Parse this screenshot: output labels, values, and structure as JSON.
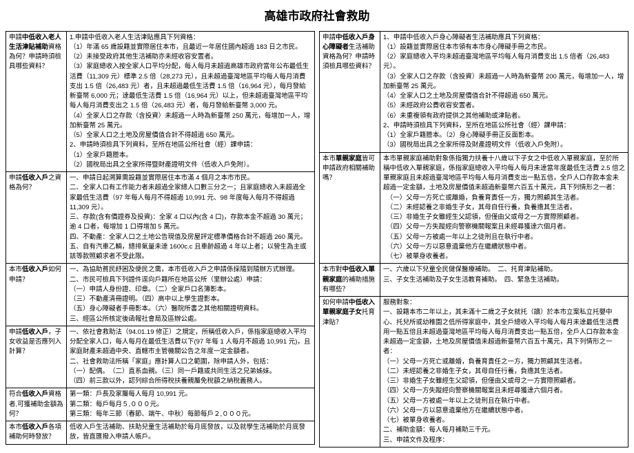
{
  "title": "高雄市政府社會救助",
  "left": [
    {
      "q": [
        "申請",
        "中低收入老人生活津貼補助",
        "資格為何？",
        "",
        "申請時須檢具哪些資料？"
      ],
      "qbold": [
        false,
        true,
        false,
        false,
        false
      ],
      "a": [
        "1.申請中低收入老人生活津貼應具下列資格：",
        "（1）年滿 65 歲設籍並實際居住本市，且最近一年居住國內超過 183 日之市民。",
        "（2）未接受政府其他生活補助亦未經收容安置者。",
        "（3）家庭總收入按全家人口平均分配，每人每月未超過高雄市政府當年公布最低生活費（11,309 元）標準 2.5 倍（28,273 元），且未超過臺灣地區平均每人每月消費支出 1.5 倍（26,483 元）者，且未超過最低生活費 1.5 倍（16,964 元），每月發給新臺幣 6,000 元；達最低生活費 1.5 倍（16,964 元）以上，但未超過臺灣地區平均每人每月消費支出之 1.5 倍（26,483 元）者，每月發給新臺幣 3,000 元。",
        "（4）全家人口之存款（含投資）未超過一人時為新臺幣 250 萬元，每增加一人，增加新臺幣 25 萬元。",
        "（5）全家人口之土地及房屋價值合計不得超過 650 萬元。",
        "2、申請時須檢具下列資料，至所在地區公所社會（經）課申請：",
        "（1）全家戶籍謄本。",
        "（2）國稅局出具之全家所得暨財產證明文件（低收入戶免附）。"
      ]
    },
    {
      "q": [
        "申請",
        "低收入戶",
        "之資格為何？"
      ],
      "qbold": [
        false,
        true,
        false
      ],
      "a": [
        "一、申請日起溯算需設籍並實際居住本市滿 4 個月之本市市民。",
        "二、全家人口有工作能力者未超過全家總人口數三分之一；且家庭總收入未超過全家最低生活費（97 年每人每月不得超過 10,991 元、98 年度每人每月不得超過 11,309 元）。",
        "三、存款(含有價證券及投資)：全家 4 口以內(含 4 口)，存款本金不超過 30 萬元；逾 4 口者，每增加 1 口得增加 5 萬元。",
        "四、不動產：全家人口之土地公告現值及房屋評定標準價格合計不超過 260 萬元。",
        "五、自有汽車乙輛，總排氣量未達 1600c.c 且車齡超過 4 年以上者；以營生為主或該等款照顧求者不受此限。"
      ]
    },
    {
      "q": [
        "本市",
        "低收入戶",
        "如何申請？"
      ],
      "qbold": [
        false,
        true,
        false
      ],
      "a": [
        "一、為協助貧民紓困及便民之需，本市低收入戶之申請係採隨到隨辦方式辦理。",
        "二、市民可檢具下列證件逕向戶籍所在地區公所（里辦公處）申請：",
        "（一）申請人身份證、印章。（二）全家戶口名簿影本。",
        "（三）不動產清冊證明。（四）高中以上學生證影本。",
        "（五）身心障礙者手冊影本。（六）醫院所書之其他相關證明資料。",
        "三、經區公所核定後函報社會局及區辦公處。"
      ]
    },
    {
      "q": [
        "申請",
        "低收入戶",
        "，子女收益是否應列入計算？"
      ],
      "qbold": [
        false,
        true,
        false
      ],
      "a": [
        "一、依社會救助法（94.01.19 修正）之規定，所稱低收入戶，係指家庭總收入平均分配全家人口，每人每月在最低生活費以下(97 年每 1 人每月不超過 10,991 元)，且家庭財產未超過中央、直轄市主管機關公告之年度一定金額者。",
        "二、社會救助法所稱「家庭」應計算人口之範圍，除申請人外，包括：",
        "（一）配偶。　（二）直系血親。（三）同一戶籍或共同生活之兄弟姊妹。",
        "（四）前三款以外，認列綜合所得稅扶養親屬免稅額之納稅義務人。"
      ]
    },
    {
      "q": [
        "符合",
        "低收入戶",
        "資格者,可獲補助金額為何？"
      ],
      "qbold": [
        false,
        true,
        false
      ],
      "a": [
        "第一類：戶長及家屬每人每月 10,991 元。",
        "第二類：每戶每月５,０００元。",
        "第三類：每年三節（春節、端午、中秋）每節每戶２,０００元。"
      ]
    },
    {
      "q": [
        "本市",
        "低收入戶",
        "各項補助何時發放？"
      ],
      "qbold": [
        false,
        true,
        false
      ],
      "a": [
        "低收入戶生活補助、扶助兒童生活補助於每月底發放，以及就學生活補助於月底發放，皆直匯撥入申請人帳戶。"
      ]
    }
  ],
  "right": [
    {
      "q": [
        "申請",
        "中低收入戶身心障礙者",
        "生活補助資格為何？申請時須檢具哪些資料？"
      ],
      "qbold": [
        false,
        true,
        false
      ],
      "a": [
        "1、申請中低收入戶身心障礙者生活補助應具下列資格：",
        "（1）設籍並實際居住本市領有本市身心障礙手冊之市民。",
        "（2）家庭總收入平均未超過臺灣地區平均每人每月消費支出 1.5 倍者（26,483 元）。",
        "（3）全家人口之存款（含投資）未超過一人時為新臺幣 200 萬元，每增加一人，增加新臺幣 25 萬元。",
        "（4）全家人口之土地及房屋價值合計不得超過 650 萬元。",
        "（5）未經政府公費收容安置者。",
        "（6）未重複領有政府提供之其他補助或津貼者。",
        "2、申請時須檢具下列資料，至所在地區公所社會（經）課申請：",
        "（1）全家戶籍謄本。（2）身心障礙手冊正反面影本。",
        "（3）國稅局出具之全家所得及財產證明文件（低收入戶免附）。"
      ]
    },
    {
      "q": [
        "本市",
        "單親家庭",
        "皆可申請政府相關補助嗎？"
      ],
      "qbold": [
        false,
        true,
        false
      ],
      "a": [
        "本市單親家庭補助對象係指獨力扶養十八歲以下子女之中低收入單親家庭，至於所稱中低收入單親家庭，係指家庭總收入平均每人每月未達當年度最低生活費 2.5 倍之單親家庭且未超過臺灣地區平均每人每月消費支出一點五倍，全戶人口存款本金未超過一定金額，土地及房屋價值未超過新臺幣六百五十萬元，具下列情形之一者：",
        "　（一）父母一方死亡或離婚，負養育責任一方，獨力照顧其生活者。",
        "　（二）未經認養之非婚生子女，其母自任行養，負養擔其生活者。",
        "　（三）非婚生子女雖經生父認領，但僅由父或母之一方實際照顧者。",
        "　（四）父母一方失蹤經向警察機關報案且未經尋獲達六個月者。",
        "　（五）父母一方被處一年以上之徒刑且在執行中者。",
        "　（六）父母一方以惡意遺棄他方在繼續狀態中者。",
        "　（七）被單身收養者。"
      ]
    },
    {
      "q": [
        "本市對",
        "中低收入單親家庭",
        "的補助措施有哪些？"
      ],
      "qbold": [
        false,
        true,
        false
      ],
      "a": [
        "一、六歲以下兒童全民健保醫療補助。　二、托育津貼補助。",
        "三、子女生活補助及子女生活教育補助。　四、緊急生活補助。"
      ]
    },
    {
      "q": [
        "如何申請",
        "中低收入單親家庭子女",
        "托育津貼？"
      ],
      "qbold": [
        false,
        true,
        false
      ],
      "a": [
        "服務對象：",
        "一、設籍本市二年以上，其未滿十二歲之子女就托（讀）於本市立案私立托嬰中心、托兒所或幼稚園之低所得家庭中，其全戶總收入平均每人每月未達最低生活費用一點五倍且未超過臺灣地區平均每人每月消費支出一點五倍，全戶人口存款本金未超過一定金額，土地及房屋價值未超過新臺幣六百五十萬元，具下列情形之一者：",
        "（一）父母一方死亡或離婚，負養育責任之一方，獨力照顧其生活者。",
        "（二）未經認養之非婚生子女，其母自任行養，負擔其生活者。",
        "（三）非婚生子女雖經生父認領，但僅由父或母之一方實際照顧者。",
        "（四）父母一方失蹤經向警察機關報案且未經尋獲達六個月者。",
        "（五）父母一方被處一年以上之徒刑且在執行中者。",
        "（六）父母一方以惡意遺棄他方在繼續狀態中者。",
        "（七）被單身收養者。",
        "二、補助金額：每人每月補助三千元。",
        "三、申請文件及程序："
      ]
    }
  ]
}
